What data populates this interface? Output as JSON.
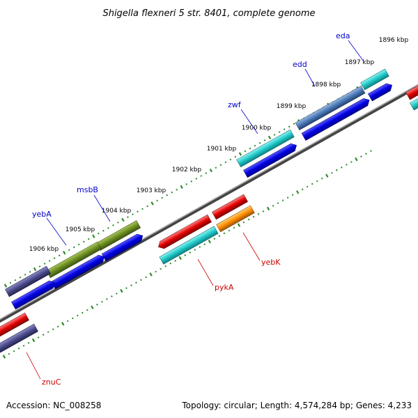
{
  "title": "Shigella flexneri 5 str. 8401, complete genome",
  "footer": {
    "accession": "Accession: NC_008258",
    "summary": "Topology: circular; Length: 4,574,284 bp; Genes: 4,233"
  },
  "ticks": [
    {
      "label": "1896 kbp",
      "kbp": 1896
    },
    {
      "label": "1897 kbp",
      "kbp": 1897
    },
    {
      "label": "1898 kbp",
      "kbp": 1898
    },
    {
      "label": "1899 kbp",
      "kbp": 1899
    },
    {
      "label": "1900 kbp",
      "kbp": 1900
    },
    {
      "label": "1901 kbp",
      "kbp": 1901
    },
    {
      "label": "1902 kbp",
      "kbp": 1902
    },
    {
      "label": "1903 kbp",
      "kbp": 1903
    },
    {
      "label": "1904 kbp",
      "kbp": 1904
    },
    {
      "label": "1905 kbp",
      "kbp": 1905
    },
    {
      "label": "1906 kbp",
      "kbp": 1906
    }
  ],
  "forward_genes": [
    {
      "name": "eda",
      "color": "#1ec8c8"
    },
    {
      "name": "edd",
      "color": "#4a78b8"
    },
    {
      "name": "zwf",
      "color": "#1ec8c8"
    },
    {
      "name": "msbB",
      "color": "#6b8c22"
    },
    {
      "name": "yebA",
      "color": "#6b8c22"
    },
    {
      "name": "",
      "color": "#4a4a8c"
    }
  ],
  "reverse_genes": [
    {
      "name": "yebK",
      "color": "#ff8c00"
    },
    {
      "name": "pykA",
      "color": "#e00000"
    },
    {
      "name": "znuC",
      "color": "#e00000"
    }
  ],
  "colors": {
    "cds_forward": "#0000e0",
    "cds_reverse_cyan": "#1ec8c8",
    "backbone": "#777777",
    "tick": "#2a8a2a"
  }
}
